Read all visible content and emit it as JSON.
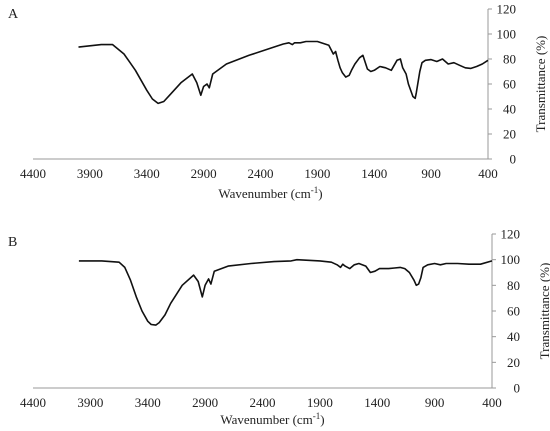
{
  "chart_data": [
    {
      "type": "line",
      "panel_label": "A",
      "xlabel": "Wavenumber (cm",
      "xlabel_sup": "-1",
      "xlabel_tail": ")",
      "ylabel": "Transmittance (%)",
      "xlim": [
        4400,
        400
      ],
      "ylim": [
        0,
        120
      ],
      "xticks": [
        4400,
        3900,
        3400,
        2900,
        2400,
        1900,
        1400,
        900,
        400
      ],
      "yticks": [
        0,
        20,
        40,
        60,
        80,
        100,
        120
      ],
      "series": [
        {
          "x": [
            4000,
            3800,
            3700,
            3600,
            3500,
            3450,
            3400,
            3350,
            3300,
            3250,
            3200,
            3100,
            3000,
            2960,
            2925,
            2900,
            2870,
            2850,
            2820,
            2700,
            2500,
            2300,
            2200,
            2150,
            2120,
            2100,
            2050,
            2000,
            1900,
            1800,
            1760,
            1740,
            1720,
            1700,
            1680,
            1650,
            1620,
            1600,
            1570,
            1530,
            1500,
            1460,
            1430,
            1400,
            1350,
            1300,
            1250,
            1200,
            1170,
            1150,
            1120,
            1100,
            1060,
            1040,
            1030,
            1000,
            980,
            950,
            900,
            850,
            800,
            750,
            700,
            650,
            600,
            550,
            500,
            450,
            400
          ],
          "y": [
            89.5,
            91.5,
            91.5,
            84,
            71,
            63,
            55,
            48,
            44.5,
            46,
            51,
            61,
            68,
            61,
            51,
            58,
            60,
            57,
            68,
            76,
            83,
            89,
            92,
            93,
            91.5,
            93,
            93,
            94,
            94,
            91,
            84,
            86,
            79,
            73,
            69,
            65.5,
            67,
            71,
            76,
            81,
            83,
            72,
            70,
            71,
            74,
            73,
            71,
            79,
            80,
            73,
            68,
            60,
            50,
            48.5,
            53,
            70,
            77,
            79,
            79.5,
            78,
            80,
            76,
            77,
            75,
            73,
            72.5,
            74,
            76,
            79
          ]
        }
      ]
    },
    {
      "type": "line",
      "panel_label": "B",
      "xlabel": "Wavenumber (cm",
      "xlabel_sup": "-1",
      "xlabel_tail": ")",
      "ylabel": "Transmittance (%)",
      "xlim": [
        4400,
        400
      ],
      "ylim": [
        0,
        120
      ],
      "xticks": [
        4400,
        3900,
        3400,
        2900,
        2400,
        1900,
        1400,
        900,
        400
      ],
      "yticks": [
        0,
        20,
        40,
        60,
        80,
        100,
        120
      ],
      "series": [
        {
          "x": [
            4000,
            3800,
            3650,
            3600,
            3550,
            3500,
            3450,
            3400,
            3370,
            3330,
            3300,
            3250,
            3200,
            3100,
            3000,
            2960,
            2925,
            2900,
            2870,
            2850,
            2820,
            2700,
            2500,
            2300,
            2150,
            2100,
            2000,
            1900,
            1800,
            1750,
            1720,
            1700,
            1680,
            1640,
            1600,
            1560,
            1500,
            1460,
            1420,
            1380,
            1300,
            1250,
            1200,
            1160,
            1120,
            1080,
            1060,
            1040,
            1020,
            1000,
            960,
            900,
            850,
            800,
            700,
            600,
            500,
            400
          ],
          "y": [
            99,
            99,
            98,
            94,
            84,
            71,
            60,
            52,
            49.5,
            49,
            51,
            57,
            66,
            80,
            88,
            83,
            71,
            80,
            85,
            81,
            91,
            95,
            97,
            98.5,
            99,
            100,
            99.5,
            99,
            98,
            96,
            94,
            96.5,
            95,
            93,
            96,
            97,
            95,
            90,
            91,
            93,
            93,
            93.5,
            94,
            93,
            90,
            84,
            80,
            81,
            86,
            94,
            96,
            97,
            96,
            97,
            97,
            96.5,
            96.5,
            99
          ]
        }
      ]
    }
  ]
}
